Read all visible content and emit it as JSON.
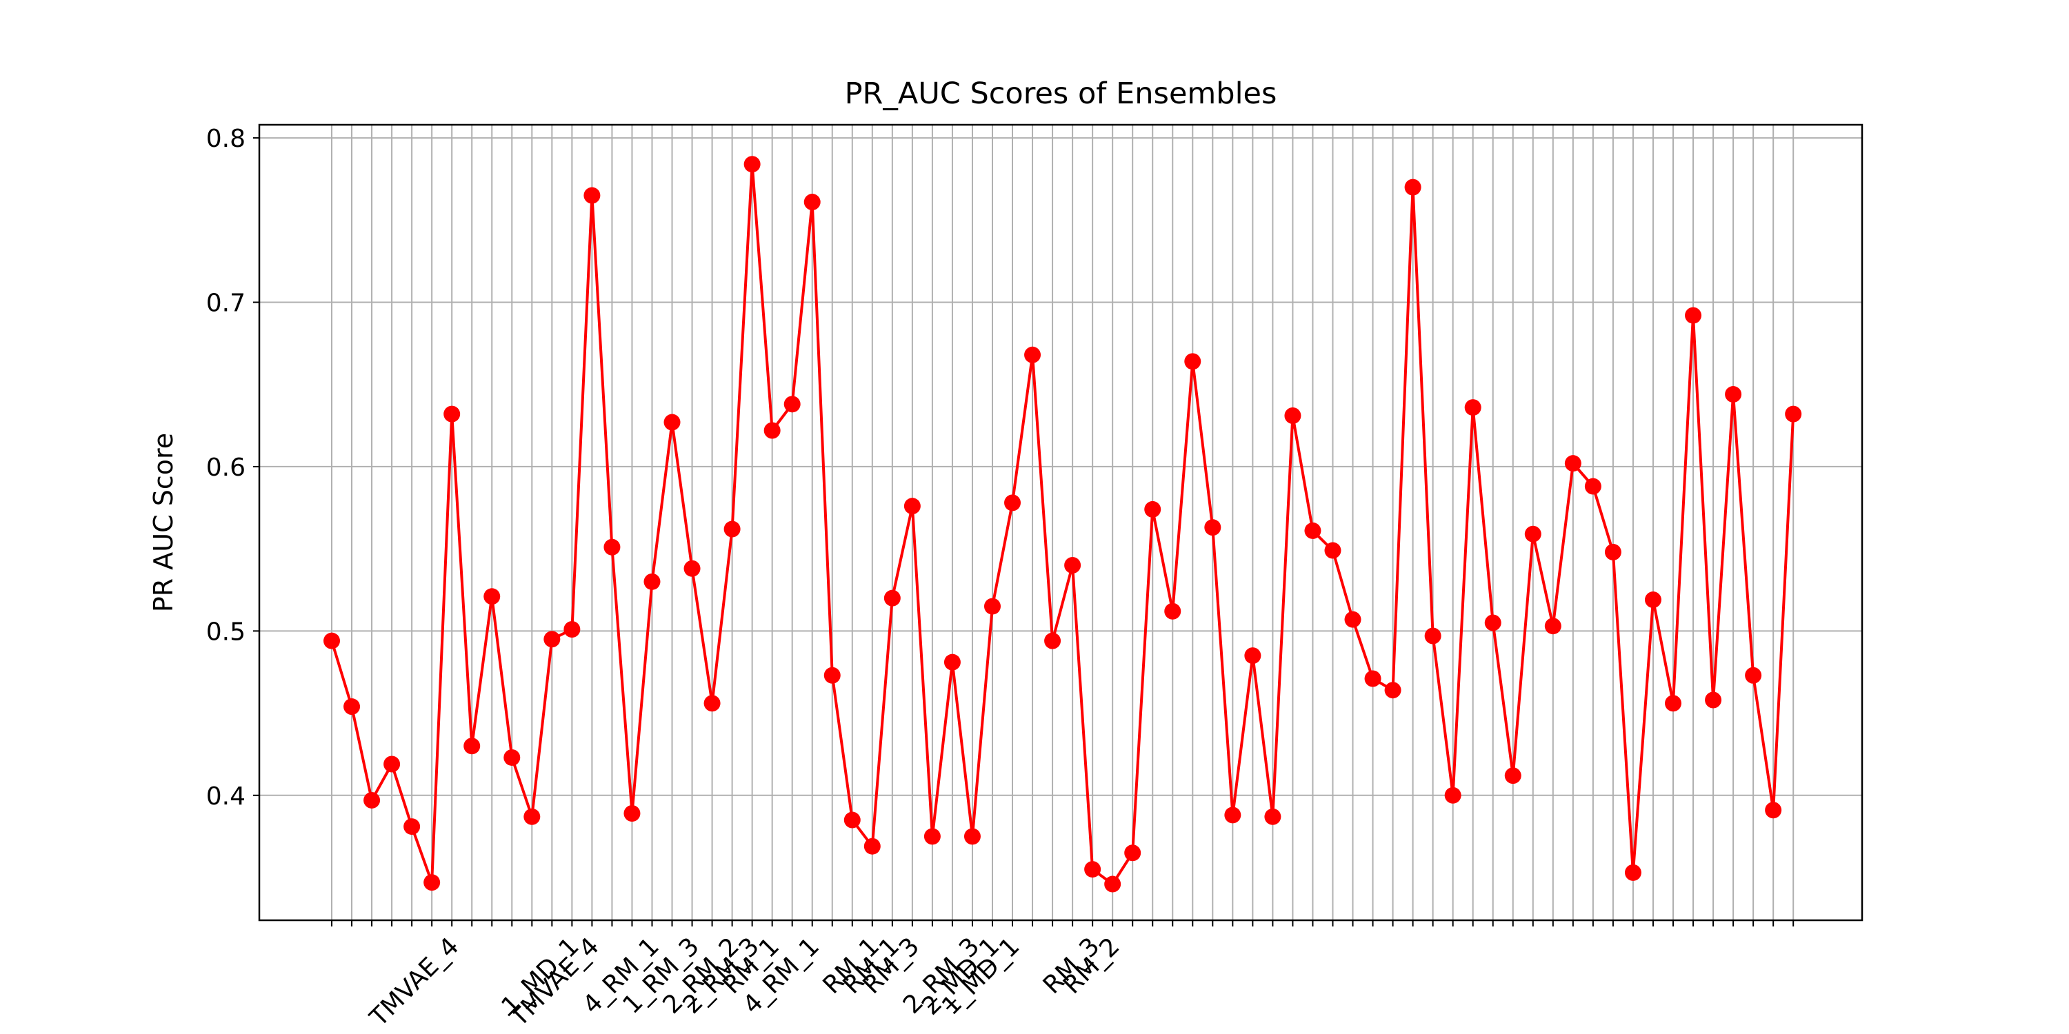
{
  "chart_data": {
    "type": "line",
    "title": "PR_AUC Scores of Ensembles",
    "xlabel": "",
    "ylabel": "PR AUC Score",
    "ylim": [
      0.324,
      0.808
    ],
    "y_ticks": [
      "0.4",
      "0.5",
      "0.6",
      "0.7",
      "0.8"
    ],
    "grid": true,
    "marker": "circle",
    "x_tick_labels": [
      "",
      "",
      "",
      "",
      "",
      "",
      "TMVAE_4",
      "",
      "",
      "",
      "",
      "",
      "1_MD_1",
      "TMVAE_4",
      "",
      "",
      "4_RM_1",
      "",
      "1_RM_3",
      "",
      "2_RM_2",
      "2_RM_3",
      "RM_1",
      "",
      "4_RM_1",
      "",
      "",
      "RM_1",
      "RM_1",
      "RM_3",
      "",
      "",
      "2_RM_3",
      "2_MD_1",
      "1_MD_1",
      "",
      "",
      "",
      "RM_3",
      "RM_2",
      "",
      "",
      "",
      "",
      "",
      "",
      "",
      "",
      "",
      "",
      "",
      "",
      "",
      "",
      "",
      "",
      "",
      "",
      "",
      "",
      "",
      "",
      "",
      "",
      "",
      "",
      "",
      "",
      "",
      "",
      "",
      "",
      "",
      "",
      "",
      ""
    ],
    "series": [
      {
        "name": "",
        "color": "#ff0000",
        "values": [
          0.494,
          0.454,
          0.397,
          0.419,
          0.381,
          0.347,
          0.632,
          0.43,
          0.521,
          0.423,
          0.387,
          0.495,
          0.501,
          0.765,
          0.551,
          0.389,
          0.53,
          0.627,
          0.538,
          0.456,
          0.562,
          0.784,
          0.622,
          0.638,
          0.761,
          0.473,
          0.385,
          0.369,
          0.52,
          0.576,
          0.375,
          0.481,
          0.375,
          0.515,
          0.578,
          0.668,
          0.494,
          0.54,
          0.355,
          0.346,
          0.365,
          0.574,
          0.512,
          0.664,
          0.563,
          0.388,
          0.485,
          0.387,
          0.631,
          0.561,
          0.549,
          0.507,
          0.471,
          0.464,
          0.77,
          0.497,
          0.4,
          0.636,
          0.505,
          0.412,
          0.559,
          0.503,
          0.602,
          0.588,
          0.548,
          0.353,
          0.519,
          0.456,
          0.692,
          0.458,
          0.644,
          0.473,
          0.391,
          0.632
        ]
      }
    ]
  }
}
